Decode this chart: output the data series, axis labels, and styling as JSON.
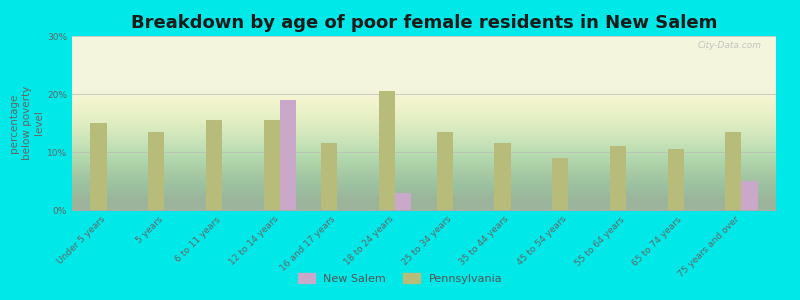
{
  "title": "Breakdown by age of poor female residents in New Salem",
  "ylabel": "percentage\nbelow poverty\nlevel",
  "categories": [
    "Under 5 years",
    "5 years",
    "6 to 11 years",
    "12 to 14 years",
    "16 and 17 years",
    "18 to 24 years",
    "25 to 34 years",
    "35 to 44 years",
    "45 to 54 years",
    "55 to 64 years",
    "65 to 74 years",
    "75 years and over"
  ],
  "new_salem": [
    0,
    0,
    0,
    19,
    0,
    3,
    0,
    0,
    0,
    0,
    0,
    5
  ],
  "pennsylvania": [
    15,
    13.5,
    15.5,
    15.5,
    11.5,
    20.5,
    13.5,
    11.5,
    9,
    11,
    10.5,
    13.5
  ],
  "new_salem_color": "#c9a8c9",
  "pennsylvania_color": "#b8bc7a",
  "background_color": "#00e8e8",
  "plot_bg_top": "#f0f2d8",
  "plot_bg_bottom": "#f8faee",
  "ylim": [
    0,
    30
  ],
  "yticks": [
    0,
    10,
    20,
    30
  ],
  "ytick_labels": [
    "0%",
    "10%",
    "20%",
    "30%"
  ],
  "bar_width": 0.28,
  "title_fontsize": 13,
  "axis_label_fontsize": 7.5,
  "tick_label_fontsize": 6.5,
  "legend_fontsize": 8
}
